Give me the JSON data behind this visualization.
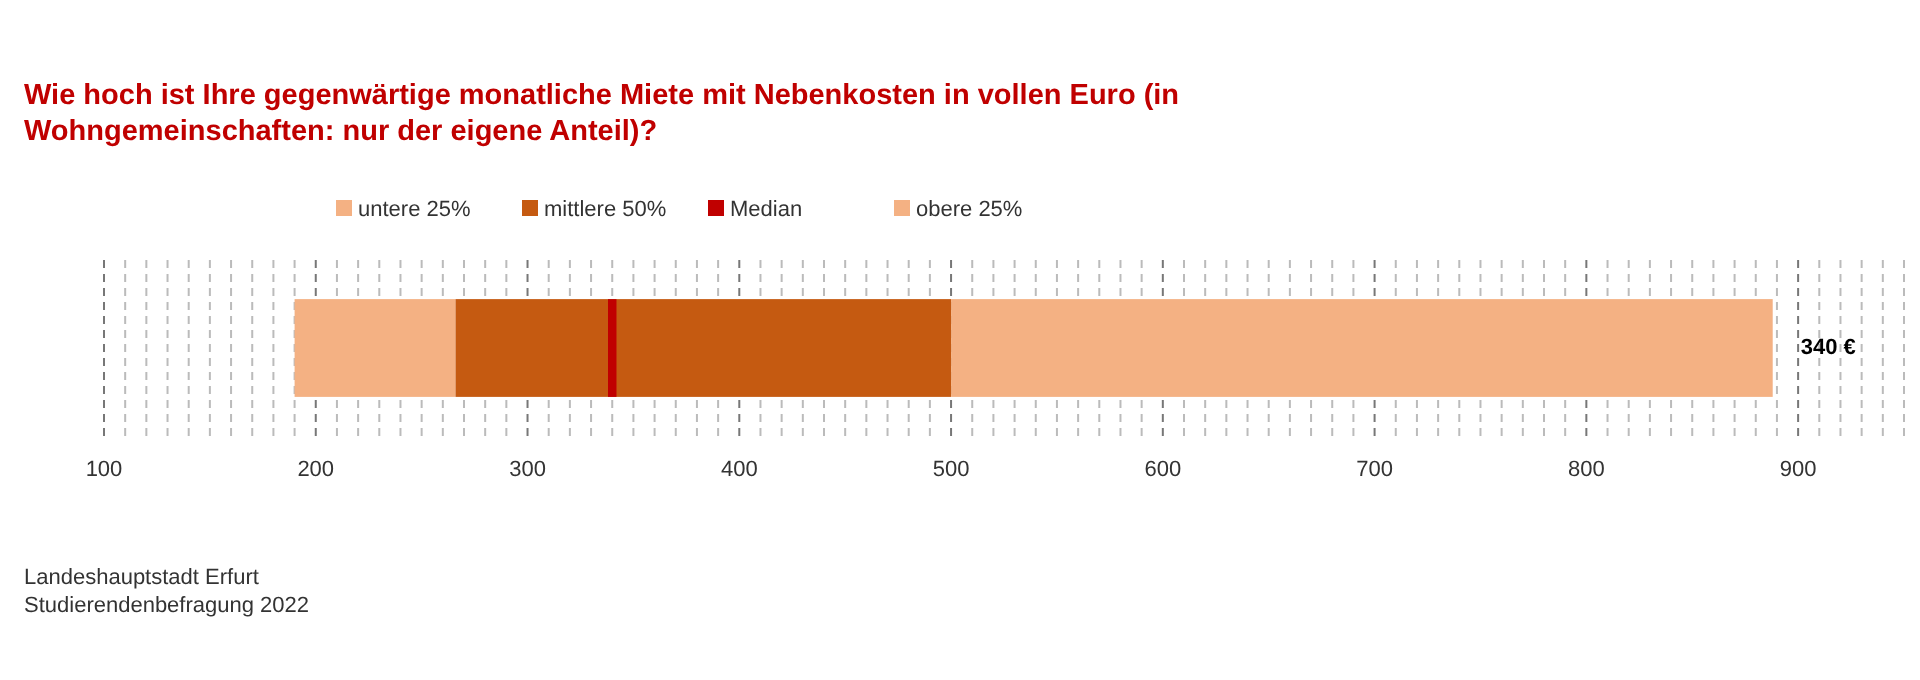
{
  "chart_data": {
    "type": "bar",
    "orientation": "horizontal",
    "title": "Wie hoch ist Ihre gegenwärtige monatliche Miete mit Nebenkosten in vollen Euro (in Wohngemeinschaften: nur der eigene Anteil)?",
    "categories": [
      null
    ],
    "series": [
      {
        "name": "untere 25%",
        "color": "#f4b183",
        "base": [
          190
        ],
        "values": [
          76
        ]
      },
      {
        "name": "mittlere 50%",
        "color": "#c55a11",
        "base": [
          266
        ],
        "values": [
          234
        ]
      },
      {
        "name": "Median",
        "color": "#c00000",
        "base": [
          338
        ],
        "values": [
          4
        ]
      },
      {
        "name": "obere 25%",
        "color": "#f4b183",
        "base": [
          500
        ],
        "values": [
          388
        ]
      }
    ],
    "xlim": [
      100,
      950
    ],
    "xticks": [
      100,
      {
        "value": 110,
        "label": null
      },
      {
        "value": 120,
        "label": null
      },
      {
        "value": 130,
        "label": null
      },
      {
        "value": 140,
        "label": null
      },
      {
        "value": 150,
        "label": null
      },
      {
        "value": 160,
        "label": null
      },
      {
        "value": 170,
        "label": null
      },
      {
        "value": 180,
        "label": null
      },
      {
        "value": 190,
        "label": null
      },
      200,
      {
        "value": 210,
        "label": null
      },
      {
        "value": 220,
        "label": null
      },
      {
        "value": 230,
        "label": null
      },
      {
        "value": 240,
        "label": null
      },
      {
        "value": 250,
        "label": null
      },
      {
        "value": 260,
        "label": null
      },
      {
        "value": 270,
        "label": null
      },
      {
        "value": 280,
        "label": null
      },
      {
        "value": 290,
        "label": null
      },
      300,
      {
        "value": 310,
        "label": null
      },
      {
        "value": 320,
        "label": null
      },
      {
        "value": 330,
        "label": null
      },
      {
        "value": 340,
        "label": null
      },
      {
        "value": 350,
        "label": null
      },
      {
        "value": 360,
        "label": null
      },
      {
        "value": 370,
        "label": null
      },
      {
        "value": 380,
        "label": null
      },
      {
        "value": 390,
        "label": null
      },
      400,
      {
        "value": 410,
        "label": null
      },
      {
        "value": 420,
        "label": null
      },
      {
        "value": 430,
        "label": null
      },
      {
        "value": 440,
        "label": null
      },
      {
        "value": 450,
        "label": null
      },
      {
        "value": 460,
        "label": null
      },
      {
        "value": 470,
        "label": null
      },
      {
        "value": 480,
        "label": null
      },
      {
        "value": 490,
        "label": null
      },
      500,
      {
        "value": 510,
        "label": null
      },
      {
        "value": 520,
        "label": null
      },
      {
        "value": 530,
        "label": null
      },
      {
        "value": 540,
        "label": null
      },
      {
        "value": 550,
        "label": null
      },
      {
        "value": 560,
        "label": null
      },
      {
        "value": 570,
        "label": null
      },
      {
        "value": 580,
        "label": null
      },
      {
        "value": 590,
        "label": null
      },
      600,
      {
        "value": 610,
        "label": null
      },
      {
        "value": 620,
        "label": null
      },
      {
        "value": 630,
        "label": null
      },
      {
        "value": 640,
        "label": null
      },
      {
        "value": 650,
        "label": null
      },
      {
        "value": 660,
        "label": null
      },
      {
        "value": 670,
        "label": null
      },
      {
        "value": 680,
        "label": null
      },
      {
        "value": 690,
        "label": null
      },
      700,
      {
        "value": 710,
        "label": null
      },
      {
        "value": 720,
        "label": null
      },
      {
        "value": 730,
        "label": null
      },
      {
        "value": 740,
        "label": null
      },
      {
        "value": 750,
        "label": null
      },
      {
        "value": 760,
        "label": null
      },
      {
        "value": 770,
        "label": null
      },
      {
        "value": 780,
        "label": null
      },
      {
        "value": 790,
        "label": null
      },
      800,
      {
        "value": 810,
        "label": null
      },
      {
        "value": 820,
        "label": null
      },
      {
        "value": 830,
        "label": null
      },
      {
        "value": 840,
        "label": null
      },
      {
        "value": 850,
        "label": null
      },
      {
        "value": 860,
        "label": null
      },
      {
        "value": 870,
        "label": null
      },
      {
        "value": 880,
        "label": null
      },
      {
        "value": 890,
        "label": null
      },
      900,
      {
        "value": 910,
        "label": null
      },
      {
        "value": 920,
        "label": null
      },
      {
        "value": 930,
        "label": null
      },
      {
        "value": 940,
        "label": null
      },
      {
        "value": 950,
        "label": null
      }
    ],
    "grid": "x",
    "legend": "top",
    "annotations": [
      "340 €",
      "Landeshauptstadt Erfurt",
      "Studierendenbefragung  2022"
    ]
  }
}
